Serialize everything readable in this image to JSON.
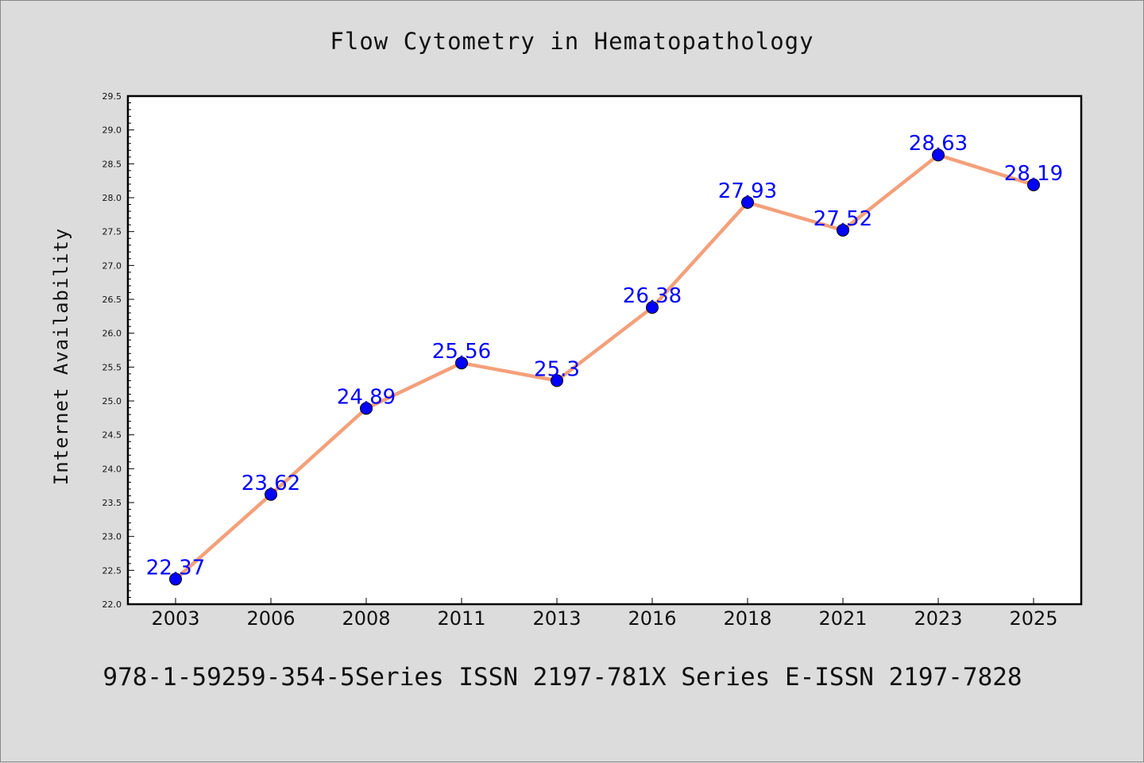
{
  "chart_data": {
    "type": "line",
    "title": "Flow Cytometry in Hematopathology",
    "xlabel": "",
    "ylabel": "Internet Availability",
    "categories": [
      "2003",
      "2006",
      "2008",
      "2011",
      "2013",
      "2016",
      "2018",
      "2021",
      "2023",
      "2025"
    ],
    "series": [
      {
        "values": [
          22.37,
          23.62,
          24.89,
          25.56,
          25.3,
          26.38,
          27.93,
          27.52,
          28.63,
          28.19
        ],
        "data_labels": [
          "22.37",
          "23.62",
          "24.89",
          "25.56",
          "25.3",
          "26.38",
          "27.93",
          "27.52",
          "28.63",
          "28.19"
        ],
        "line_color": "#f4a07a",
        "marker_color": "#0000ff"
      }
    ],
    "ylim": [
      22.0,
      29.5
    ],
    "yticks": [
      "22.0",
      "22.5",
      "23.0",
      "23.5",
      "24.0",
      "24.5",
      "25.0",
      "25.5",
      "26.0",
      "26.5",
      "27.0",
      "27.5",
      "28.0",
      "28.5",
      "29.0",
      "29.5"
    ],
    "grid": false,
    "legend": "none"
  },
  "footer": {
    "text": "978-1-59259-354-5Series ISSN 2197-781X Series E-ISSN 2197-7828"
  },
  "colors": {
    "background": "#dcdcdc",
    "plot_background": "#ffffff",
    "line": "#f4a07a",
    "marker": "#0000ff",
    "data_label": "#0000ff"
  }
}
